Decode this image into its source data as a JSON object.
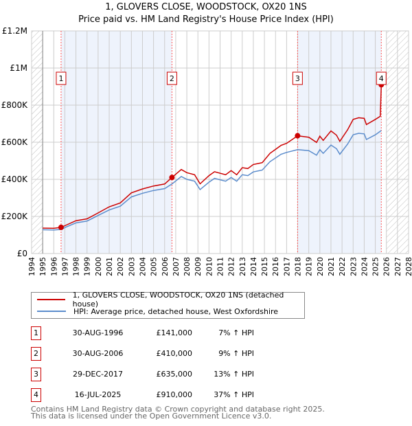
{
  "chart_data": {
    "type": "line",
    "title": "1, GLOVERS CLOSE, WOODSTOCK, OX20 1NS",
    "subtitle": "Price paid vs. HM Land Registry's House Price Index (HPI)",
    "xlim": [
      1994,
      2028
    ],
    "ylim": [
      0,
      1200000
    ],
    "y_ticks": [
      {
        "v": 0,
        "label": "£0"
      },
      {
        "v": 200000,
        "label": "£200K"
      },
      {
        "v": 400000,
        "label": "£400K"
      },
      {
        "v": 600000,
        "label": "£600K"
      },
      {
        "v": 800000,
        "label": "£800K"
      },
      {
        "v": 1000000,
        "label": "£1M"
      },
      {
        "v": 1200000,
        "label": "£1.2M"
      }
    ],
    "x_ticks": [
      "1994",
      "1995",
      "1996",
      "1997",
      "1998",
      "1999",
      "2000",
      "2001",
      "2002",
      "2003",
      "2004",
      "2005",
      "2006",
      "2007",
      "2008",
      "2009",
      "2010",
      "2011",
      "2012",
      "2013",
      "2014",
      "2015",
      "2016",
      "2017",
      "2018",
      "2019",
      "2020",
      "2021",
      "2022",
      "2023",
      "2024",
      "2025",
      "2026",
      "2027",
      "2028"
    ],
    "grid": true,
    "colors": {
      "price": "#cc0000",
      "hpi": "#5b8ccc",
      "band": "#eef3fc"
    },
    "hatch_ranges": [
      [
        1994,
        1995
      ],
      [
        2026,
        2028
      ]
    ],
    "series": [
      {
        "name": "1, GLOVERS CLOSE, WOODSTOCK, OX20 1NS (detached house)",
        "color": "#cc0000",
        "x": [
          1995,
          1996,
          1996.66,
          1997,
          1998,
          1999,
          2000,
          2001,
          2002,
          2003,
          2004,
          2005,
          2006,
          2006.66,
          2007.5,
          2008,
          2008.7,
          2009.2,
          2010,
          2010.5,
          2011.5,
          2012,
          2012.5,
          2013,
          2013.5,
          2014,
          2014.8,
          2015.5,
          2016.5,
          2017,
          2017.99,
          2019,
          2019.7,
          2020,
          2020.3,
          2021,
          2021.5,
          2021.8,
          2022.5,
          2023,
          2023.5,
          2024,
          2024.2,
          2025,
          2025.45,
          2025.54
        ],
        "y": [
          137000,
          136000,
          141000,
          150000,
          177000,
          187000,
          219000,
          252000,
          273000,
          327000,
          348000,
          364000,
          375000,
          410000,
          453000,
          436000,
          425000,
          376000,
          420000,
          441000,
          425000,
          447000,
          425000,
          463000,
          458000,
          480000,
          490000,
          540000,
          583000,
          594000,
          635000,
          627000,
          599000,
          633000,
          610000,
          661000,
          638000,
          605000,
          667000,
          723000,
          732000,
          729000,
          695000,
          723000,
          740000,
          910000
        ]
      },
      {
        "name": "HPI: Average price, detached house, West Oxfordshire",
        "color": "#5b8ccc",
        "x": [
          1995,
          1996,
          1996.7,
          1997,
          1998,
          1999,
          2000,
          2001,
          2002,
          2003,
          2004,
          2005,
          2006,
          2006.66,
          2007.5,
          2008,
          2008.7,
          2009.2,
          2010,
          2010.5,
          2011.5,
          2012,
          2012.5,
          2013,
          2013.5,
          2014,
          2014.8,
          2015.5,
          2016.5,
          2017,
          2018,
          2019,
          2019.7,
          2020,
          2020.3,
          2021,
          2021.5,
          2021.8,
          2022.5,
          2023,
          2023.5,
          2024,
          2024.2,
          2025,
          2025.54
        ],
        "y": [
          128000,
          127000,
          130000,
          140000,
          165000,
          175000,
          205000,
          235000,
          255000,
          305000,
          325000,
          340000,
          350000,
          375000,
          415000,
          400000,
          390000,
          345000,
          385000,
          405000,
          390000,
          410000,
          390000,
          425000,
          420000,
          440000,
          450000,
          495000,
          535000,
          545000,
          560000,
          555000,
          530000,
          560000,
          540000,
          585000,
          565000,
          535000,
          590000,
          640000,
          648000,
          645000,
          615000,
          640000,
          663000
        ]
      }
    ],
    "sales": [
      {
        "n": "1",
        "x": 1996.66,
        "y": 141000
      },
      {
        "n": "2",
        "x": 2006.66,
        "y": 410000
      },
      {
        "n": "3",
        "x": 2017.99,
        "y": 635000
      },
      {
        "n": "4",
        "x": 2025.54,
        "y": 910000
      }
    ]
  },
  "legend": {
    "price": "1, GLOVERS CLOSE, WOODSTOCK, OX20 1NS (detached house)",
    "hpi": "HPI: Average price, detached house, West Oxfordshire"
  },
  "table": [
    {
      "n": "1",
      "date": "30-AUG-1996",
      "price": "£141,000",
      "hpi": "7% ↑ HPI"
    },
    {
      "n": "2",
      "date": "30-AUG-2006",
      "price": "£410,000",
      "hpi": "9% ↑ HPI"
    },
    {
      "n": "3",
      "date": "29-DEC-2017",
      "price": "£635,000",
      "hpi": "13% ↑ HPI"
    },
    {
      "n": "4",
      "date": "16-JUL-2025",
      "price": "£910,000",
      "hpi": "37% ↑ HPI"
    }
  ],
  "footer": {
    "line1": "Contains HM Land Registry data © Crown copyright and database right 2025.",
    "line2": "This data is licensed under the Open Government Licence v3.0."
  }
}
